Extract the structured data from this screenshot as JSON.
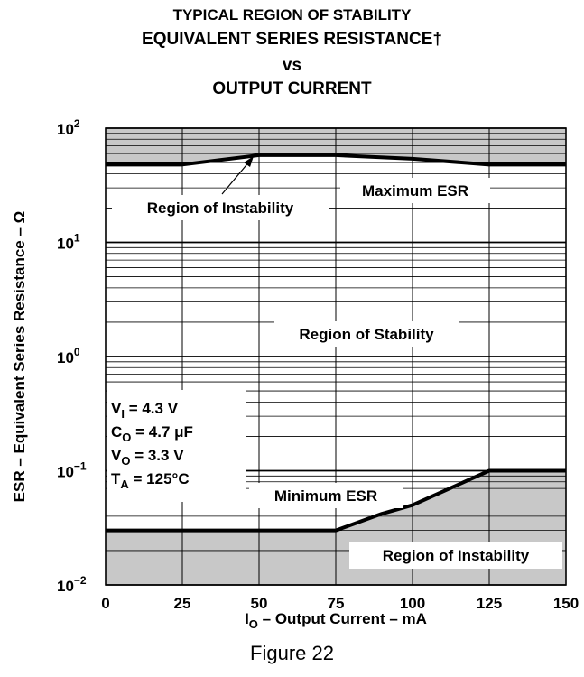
{
  "chart_data": {
    "type": "line",
    "title_lines": [
      "TYPICAL REGION OF STABILITY",
      "EQUIVALENT SERIES RESISTANCE†",
      "vs",
      "OUTPUT CURRENT"
    ],
    "xlabel": {
      "base": "I",
      "sub": "O",
      "rest": " – Output Current – mA"
    },
    "ylabel": "ESR – Equivalent Series Resistance – Ω",
    "x_ticks": [
      "0",
      "25",
      "50",
      "75",
      "100",
      "125",
      "150"
    ],
    "x_tick_values": [
      0,
      25,
      50,
      75,
      100,
      125,
      150
    ],
    "xlim": [
      0,
      150
    ],
    "y_scale": "log",
    "ylim": [
      0.01,
      100
    ],
    "y_ticks": [
      {
        "base": "10",
        "exp": "2",
        "value": 100
      },
      {
        "base": "10",
        "exp": "1",
        "value": 10
      },
      {
        "base": "10",
        "exp": "0",
        "value": 1
      },
      {
        "base": "10",
        "exp": "−1",
        "value": 0.1
      },
      {
        "base": "10",
        "exp": "−2",
        "value": 0.01
      }
    ],
    "grid": true,
    "series": [
      {
        "name": "Maximum ESR",
        "points": [
          [
            0,
            48
          ],
          [
            25,
            48
          ],
          [
            50,
            58
          ],
          [
            75,
            58
          ],
          [
            100,
            54
          ],
          [
            125,
            48
          ],
          [
            150,
            48
          ]
        ]
      },
      {
        "name": "Minimum ESR",
        "points": [
          [
            0,
            0.03
          ],
          [
            25,
            0.03
          ],
          [
            50,
            0.03
          ],
          [
            75,
            0.03
          ],
          [
            90,
            0.042
          ],
          [
            100,
            0.05
          ],
          [
            125,
            0.1
          ],
          [
            150,
            0.1
          ]
        ]
      }
    ],
    "regions": [
      {
        "label": "Region of Instability",
        "position": "upper",
        "color": "#c8c8c8"
      },
      {
        "label": "Region of Stability",
        "position": "middle",
        "color": "#ffffff"
      },
      {
        "label": "Region of Instability",
        "position": "lower",
        "color": "#c8c8c8"
      }
    ],
    "conditions": [
      {
        "base": "V",
        "sub": "I",
        "rest": " = 4.3 V"
      },
      {
        "base": "C",
        "sub": "O",
        "rest": " = 4.7 μF"
      },
      {
        "base": "V",
        "sub": "O",
        "rest": " = 3.3 V"
      },
      {
        "base": "T",
        "sub": "A",
        "rest": " = 125°C"
      }
    ]
  },
  "figure_caption": "Figure 22"
}
